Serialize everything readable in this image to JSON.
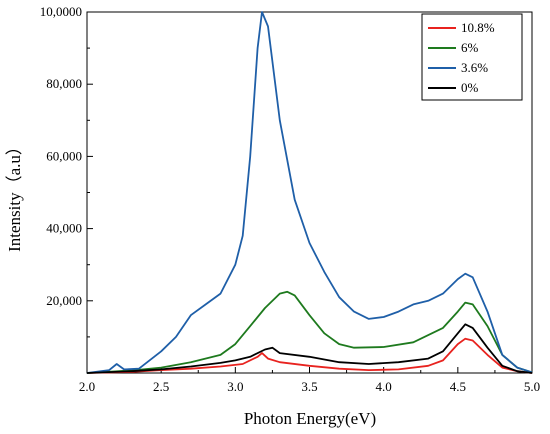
{
  "chart_data": {
    "type": "line",
    "xlabel": "Photon Energy(eV)",
    "ylabel": "Intensity（a.u）",
    "xlim": [
      2.0,
      5.0
    ],
    "ylim": [
      0,
      100000
    ],
    "x_ticks": [
      2.0,
      2.5,
      3.0,
      3.5,
      4.0,
      4.5,
      5.0
    ],
    "x_tick_labels": [
      "2.0",
      "2.5",
      "3.0",
      "3.5",
      "4.0",
      "4.5",
      "5.0"
    ],
    "y_ticks": [
      20000,
      40000,
      60000,
      80000,
      100000
    ],
    "y_tick_labels": [
      "20,000",
      "40,000",
      "60,000",
      "80,000",
      "10,0000"
    ],
    "grid": false,
    "legend_position": "top-right",
    "series": [
      {
        "name": "10.8%",
        "color": "#e8231f",
        "points": [
          [
            2.0,
            0
          ],
          [
            2.3,
            300
          ],
          [
            2.5,
            800
          ],
          [
            2.7,
            1200
          ],
          [
            2.9,
            1800
          ],
          [
            3.05,
            2500
          ],
          [
            3.15,
            4500
          ],
          [
            3.18,
            5500
          ],
          [
            3.22,
            4000
          ],
          [
            3.3,
            3000
          ],
          [
            3.5,
            2000
          ],
          [
            3.7,
            1200
          ],
          [
            3.9,
            800
          ],
          [
            4.1,
            1000
          ],
          [
            4.3,
            2000
          ],
          [
            4.4,
            3500
          ],
          [
            4.5,
            8000
          ],
          [
            4.55,
            9500
          ],
          [
            4.6,
            9000
          ],
          [
            4.7,
            5000
          ],
          [
            4.8,
            1500
          ],
          [
            4.9,
            500
          ],
          [
            5.0,
            0
          ]
        ]
      },
      {
        "name": "6%",
        "color": "#1e7a1e",
        "points": [
          [
            2.0,
            0
          ],
          [
            2.3,
            700
          ],
          [
            2.5,
            1500
          ],
          [
            2.7,
            3000
          ],
          [
            2.9,
            5000
          ],
          [
            3.0,
            8000
          ],
          [
            3.1,
            13000
          ],
          [
            3.2,
            18000
          ],
          [
            3.3,
            22000
          ],
          [
            3.35,
            22500
          ],
          [
            3.4,
            21500
          ],
          [
            3.5,
            16000
          ],
          [
            3.6,
            11000
          ],
          [
            3.7,
            8000
          ],
          [
            3.8,
            7000
          ],
          [
            4.0,
            7200
          ],
          [
            4.2,
            8500
          ],
          [
            4.4,
            12500
          ],
          [
            4.5,
            17000
          ],
          [
            4.55,
            19500
          ],
          [
            4.6,
            19000
          ],
          [
            4.7,
            13000
          ],
          [
            4.8,
            5000
          ],
          [
            4.9,
            1500
          ],
          [
            5.0,
            200
          ]
        ]
      },
      {
        "name": "3.6%",
        "color": "#1f5fa8",
        "points": [
          [
            2.0,
            0
          ],
          [
            2.15,
            800
          ],
          [
            2.2,
            2500
          ],
          [
            2.25,
            1000
          ],
          [
            2.35,
            1200
          ],
          [
            2.5,
            6000
          ],
          [
            2.6,
            10000
          ],
          [
            2.7,
            16000
          ],
          [
            2.8,
            19000
          ],
          [
            2.9,
            22000
          ],
          [
            3.0,
            30000
          ],
          [
            3.05,
            38000
          ],
          [
            3.1,
            60000
          ],
          [
            3.15,
            90000
          ],
          [
            3.18,
            100000
          ],
          [
            3.22,
            96000
          ],
          [
            3.3,
            70000
          ],
          [
            3.4,
            48000
          ],
          [
            3.5,
            36000
          ],
          [
            3.6,
            28000
          ],
          [
            3.7,
            21000
          ],
          [
            3.8,
            17000
          ],
          [
            3.9,
            15000
          ],
          [
            4.0,
            15500
          ],
          [
            4.1,
            17000
          ],
          [
            4.2,
            19000
          ],
          [
            4.3,
            20000
          ],
          [
            4.4,
            22000
          ],
          [
            4.5,
            26000
          ],
          [
            4.55,
            27500
          ],
          [
            4.6,
            26500
          ],
          [
            4.7,
            17000
          ],
          [
            4.8,
            5000
          ],
          [
            4.9,
            1500
          ],
          [
            5.0,
            200
          ]
        ]
      },
      {
        "name": "0%",
        "color": "#000000",
        "points": [
          [
            2.0,
            0
          ],
          [
            2.3,
            500
          ],
          [
            2.5,
            1000
          ],
          [
            2.7,
            1800
          ],
          [
            2.9,
            2800
          ],
          [
            3.0,
            3500
          ],
          [
            3.1,
            4500
          ],
          [
            3.2,
            6500
          ],
          [
            3.25,
            7000
          ],
          [
            3.3,
            5500
          ],
          [
            3.5,
            4500
          ],
          [
            3.7,
            3000
          ],
          [
            3.9,
            2500
          ],
          [
            4.1,
            3000
          ],
          [
            4.3,
            4000
          ],
          [
            4.4,
            6000
          ],
          [
            4.5,
            11000
          ],
          [
            4.55,
            13500
          ],
          [
            4.6,
            12500
          ],
          [
            4.7,
            7000
          ],
          [
            4.8,
            2000
          ],
          [
            4.9,
            500
          ],
          [
            5.0,
            0
          ]
        ]
      }
    ]
  }
}
